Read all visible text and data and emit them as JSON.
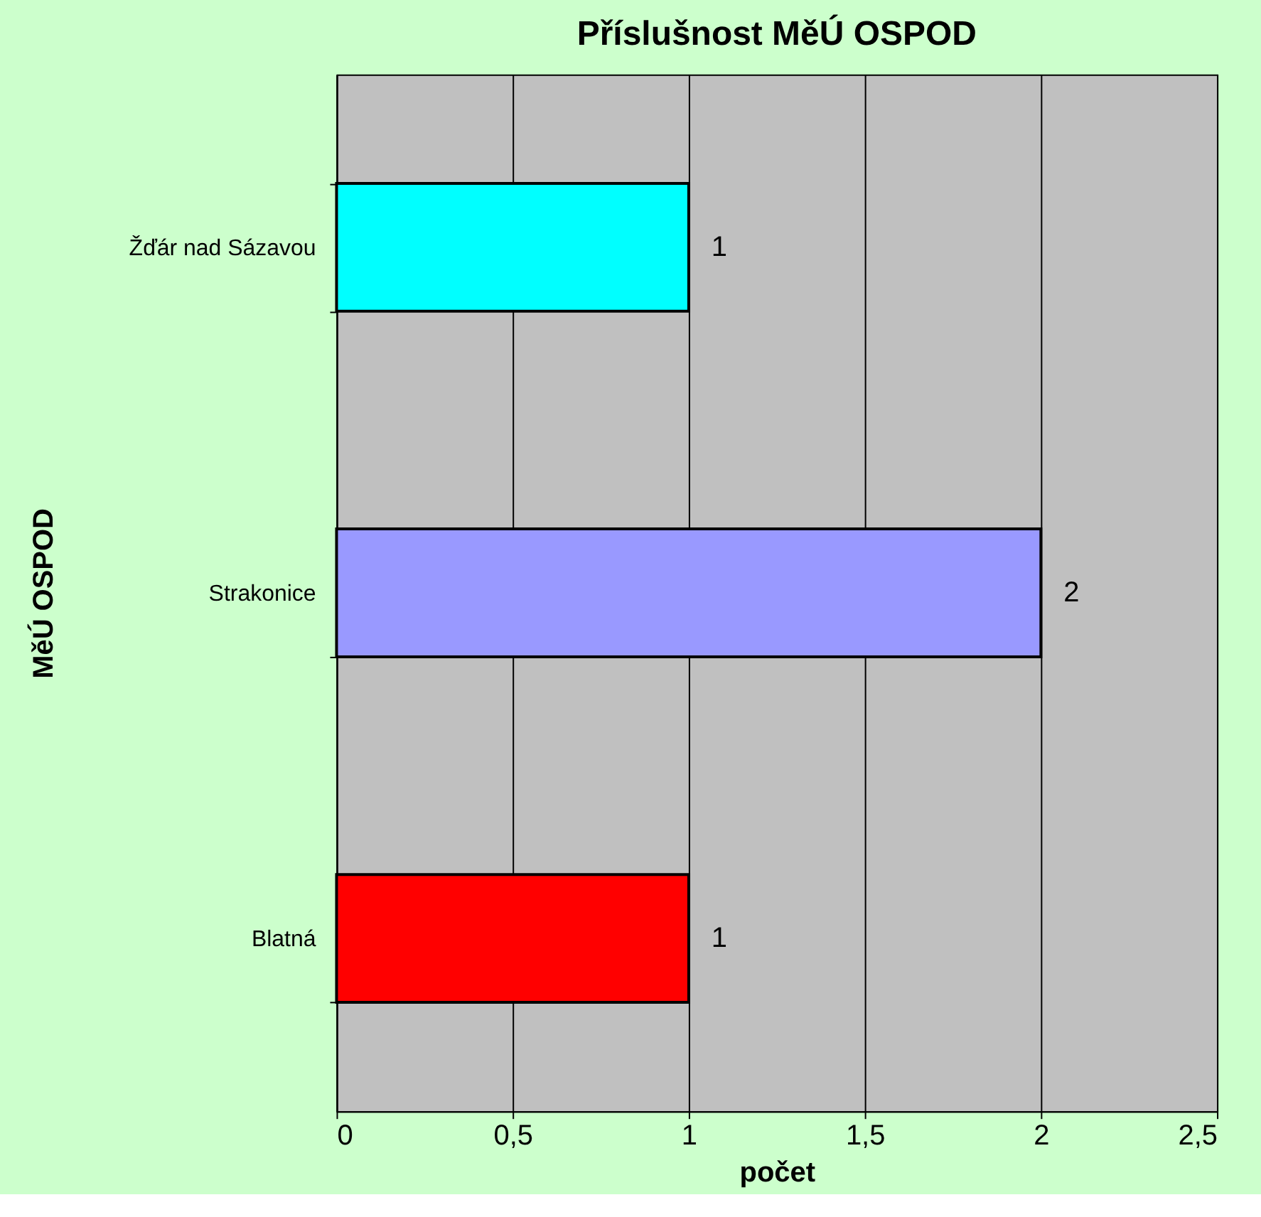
{
  "chart_data": {
    "type": "bar",
    "orientation": "horizontal",
    "title": "Příslušnost MěÚ OSPOD",
    "xlabel": "počet",
    "ylabel": "MěÚ OSPOD",
    "categories": [
      "Žďár nad Sázavou",
      "Strakonice",
      "Blatná"
    ],
    "values": [
      1,
      2,
      1
    ],
    "colors": [
      "#00ffff",
      "#9999ff",
      "#ff0000"
    ],
    "xlim": [
      0,
      2.5
    ],
    "xticks": [
      0,
      {
        "value": 0.5,
        "label": "0,5"
      },
      1,
      {
        "value": 1.5,
        "label": "1,5"
      },
      2,
      {
        "value": 2.5,
        "label": "2,5"
      }
    ],
    "grid": "x",
    "data_labels": true
  }
}
